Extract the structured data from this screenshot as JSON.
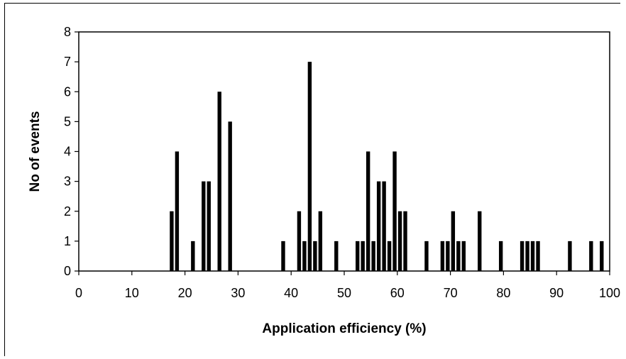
{
  "chart_data": {
    "type": "bar",
    "title": "",
    "xlabel": "Application efficiency (%)",
    "ylabel": "No of events",
    "xlim": [
      0,
      100
    ],
    "ylim": [
      0,
      8
    ],
    "xticks": [
      0,
      10,
      20,
      30,
      40,
      50,
      60,
      70,
      80,
      90,
      100
    ],
    "yticks": [
      0,
      1,
      2,
      3,
      4,
      5,
      6,
      7,
      8
    ],
    "grid": false,
    "legend": "none",
    "bar_color": "#000000",
    "bin_width": 1,
    "x": [
      17,
      18,
      21,
      23,
      24,
      26,
      28,
      38,
      41,
      42,
      43,
      44,
      45,
      48,
      52,
      53,
      54,
      55,
      56,
      57,
      58,
      59,
      60,
      61,
      65,
      68,
      69,
      70,
      71,
      72,
      75,
      79,
      83,
      84,
      85,
      86,
      92,
      96,
      98
    ],
    "values": [
      2,
      4,
      1,
      3,
      3,
      6,
      5,
      1,
      2,
      1,
      7,
      1,
      2,
      1,
      1,
      1,
      4,
      1,
      3,
      3,
      1,
      4,
      2,
      2,
      1,
      1,
      1,
      2,
      1,
      1,
      2,
      1,
      1,
      1,
      1,
      1,
      1,
      1,
      1
    ]
  }
}
